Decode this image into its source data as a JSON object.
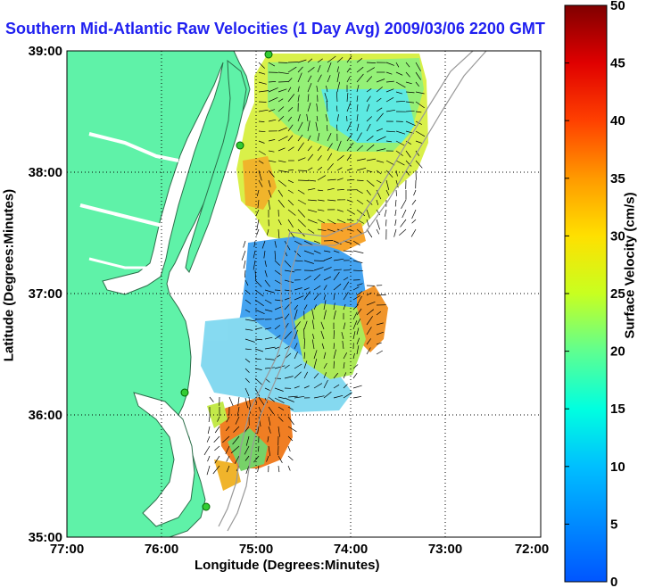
{
  "title": "Southern Mid-Atlantic Raw Velocities (1 Day Avg) 2009/03/06 2200 GMT",
  "x_axis": {
    "label": "Longitude (Degrees:Minutes)",
    "ticks": [
      "77:00",
      "76:00",
      "75:00",
      "74:00",
      "73:00",
      "72:00"
    ]
  },
  "y_axis": {
    "label": "Latitude (Degrees:Minutes)",
    "ticks": [
      "39:00",
      "38:00",
      "37:00",
      "36:00",
      "35:00"
    ]
  },
  "colorbar": {
    "label": "Surface Velocity (cm/s)",
    "ticks": [
      "50",
      "45",
      "40",
      "35",
      "30",
      "25",
      "20",
      "15",
      "10",
      "5",
      "0"
    ],
    "min": 0,
    "max": 50
  },
  "colors": {
    "land": "#5ff2a8",
    "title": "#1f1ff0",
    "stations": "#33cc33"
  },
  "chart_data": {
    "type": "heatmap",
    "title": "Southern Mid-Atlantic Raw Velocities (1 Day Avg) 2009/03/06 2200 GMT",
    "xlabel": "Longitude (Degrees:Minutes)",
    "ylabel": "Latitude (Degrees:Minutes)",
    "xlim": [
      -77,
      -72
    ],
    "ylim": [
      35,
      39
    ],
    "grid": true,
    "colorbar": {
      "label": "Surface Velocity (cm/s)",
      "range": [
        0,
        50
      ]
    }
  }
}
